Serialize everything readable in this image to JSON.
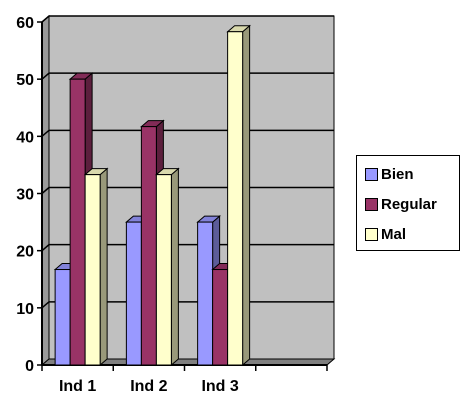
{
  "chart_data": {
    "type": "bar",
    "categories": [
      "Ind 1",
      "Ind 2",
      "Ind 3",
      ""
    ],
    "series": [
      {
        "name": "Bien",
        "values": [
          16.7,
          25,
          25,
          null
        ],
        "color": "#9999FF"
      },
      {
        "name": "Regular",
        "values": [
          50,
          41.7,
          16.7,
          null
        ],
        "color": "#993366"
      },
      {
        "name": "Mal",
        "values": [
          33.3,
          33.3,
          58.3,
          null
        ],
        "color": "#FFFFCC"
      }
    ],
    "y_ticks": [
      "0",
      "10",
      "20",
      "30",
      "40",
      "50",
      "60"
    ],
    "ylim": [
      0,
      60
    ],
    "grid": true,
    "plot_background": "#C0C0C0",
    "legend_position": "right",
    "title": "",
    "xlabel": "",
    "ylabel": ""
  }
}
